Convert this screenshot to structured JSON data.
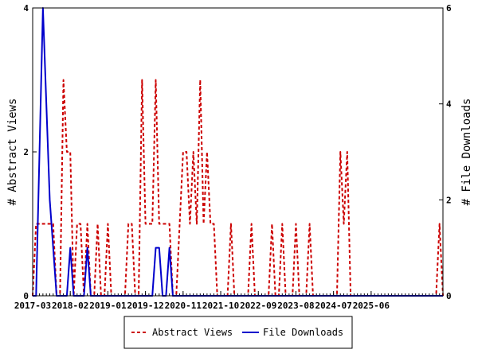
{
  "chart_data": {
    "type": "line",
    "start_month": "2017-03",
    "x_tick_labels": [
      "2017-03",
      "2018-02",
      "2019-01",
      "2019-12",
      "2020-11",
      "2021-10",
      "2022-09",
      "2023-08",
      "2024-07",
      "2025-06"
    ],
    "left_axis": {
      "label": "# Abstract Views",
      "range": [
        0,
        4
      ],
      "ticks": [
        "0",
        "2",
        "4"
      ]
    },
    "right_axis": {
      "label": "# File Downloads",
      "range": [
        0,
        6
      ],
      "ticks": [
        "0",
        "2",
        "4",
        "6"
      ]
    },
    "legend_position": "bottom",
    "series": [
      {
        "name": "Abstract Views",
        "axis": "left",
        "color": "#cc0000",
        "style": "dashed",
        "values": [
          0,
          1,
          1,
          1,
          1,
          1,
          1,
          0,
          0,
          3,
          2,
          2,
          0,
          1,
          1,
          0,
          1,
          0,
          0,
          1,
          0,
          0,
          1,
          0,
          0,
          0,
          0,
          0,
          1,
          1,
          0,
          0,
          3,
          1,
          1,
          1,
          3,
          1,
          1,
          1,
          1,
          0,
          0,
          1,
          2,
          2,
          1,
          2,
          1,
          3,
          1,
          2,
          1,
          1,
          0,
          0,
          0,
          0,
          1,
          0,
          0,
          0,
          0,
          0,
          1,
          0,
          0,
          0,
          0,
          0,
          1,
          0,
          0,
          1,
          0,
          0,
          0,
          1,
          0,
          0,
          0,
          1,
          0,
          0,
          0,
          0,
          0,
          0,
          0,
          0,
          2,
          1,
          2,
          0,
          0,
          0,
          0,
          0,
          0,
          0,
          0,
          0,
          0,
          0,
          0,
          0,
          0,
          0,
          0,
          0,
          0,
          0,
          0,
          0,
          0,
          0,
          0,
          0,
          0,
          1,
          0
        ]
      },
      {
        "name": "File Downloads",
        "axis": "right",
        "color": "#0000cc",
        "style": "solid",
        "values": [
          0,
          0,
          3,
          6,
          4,
          2,
          1,
          0,
          0,
          0,
          0,
          1,
          0,
          0,
          0,
          0,
          1,
          0,
          0,
          0,
          0,
          0,
          0,
          0,
          0,
          0,
          0,
          0,
          0,
          0,
          0,
          0,
          0,
          0,
          0,
          0,
          1,
          1,
          0,
          0,
          1,
          0,
          0,
          0,
          0,
          0,
          0,
          0,
          0,
          0,
          0,
          0,
          0,
          0,
          0,
          0,
          0,
          0,
          0,
          0,
          0,
          0,
          0,
          0,
          0,
          0,
          0,
          0,
          0,
          0,
          0,
          0,
          0,
          0,
          0,
          0,
          0,
          0,
          0,
          0,
          0,
          0,
          0,
          0,
          0,
          0,
          0,
          0,
          0,
          0,
          0,
          0,
          0,
          0,
          0,
          0,
          0,
          0,
          0,
          0,
          0,
          0,
          0,
          0,
          0,
          0,
          0,
          0,
          0,
          0,
          0,
          0,
          0,
          0,
          0,
          0,
          0,
          0,
          0,
          0,
          0
        ]
      }
    ]
  }
}
